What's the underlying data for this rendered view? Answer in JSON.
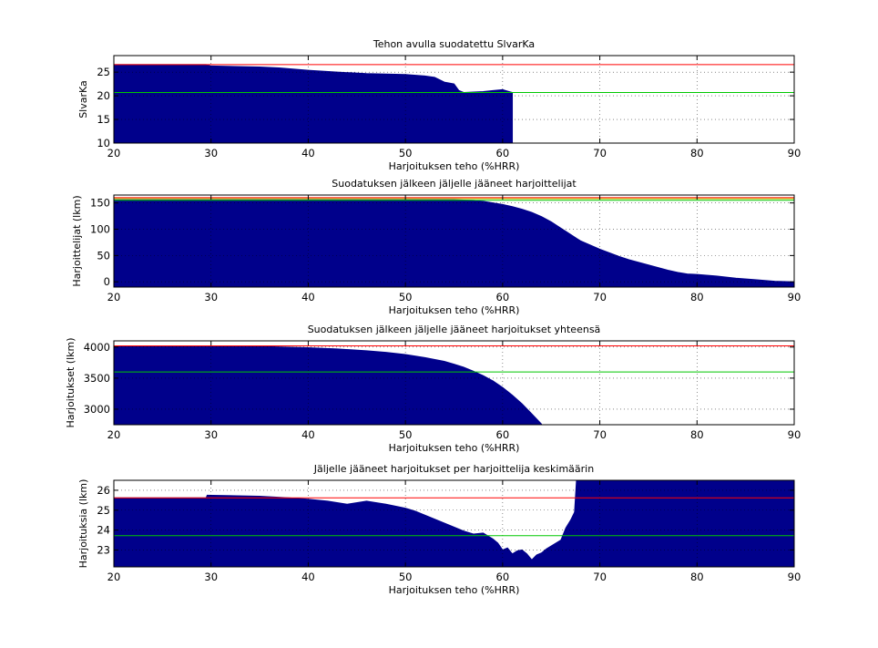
{
  "chart_data": [
    {
      "type": "area",
      "title": "Tehon avulla suodatettu SlvarKa",
      "xlabel": "Harjoituksen teho (%HRR)",
      "ylabel": "SlvarKa",
      "xlim": [
        20,
        90
      ],
      "ylim": [
        10,
        28.5
      ],
      "xticks": [
        "20",
        "30",
        "40",
        "50",
        "60",
        "70",
        "80",
        "90"
      ],
      "yticks": [
        "10",
        "15",
        "20",
        "25"
      ],
      "fill_color": "#00008b",
      "grid": true,
      "x": [
        20,
        29.5,
        30,
        35,
        37,
        40,
        43,
        46,
        48,
        50,
        52,
        53,
        54,
        55,
        55.5,
        56,
        58,
        59,
        60,
        60.5,
        61
      ],
      "values": [
        26.6,
        26.6,
        26.3,
        26.1,
        25.9,
        25.4,
        25.0,
        24.7,
        24.6,
        24.5,
        24.2,
        23.9,
        22.9,
        22.5,
        21.1,
        20.7,
        20.9,
        21.1,
        21.3,
        21.0,
        20.7
      ],
      "x_end": 61,
      "reference_lines": [
        {
          "y": 26.6,
          "color": "#ff0000"
        },
        {
          "y": 20.7,
          "color": "#00c800"
        }
      ]
    },
    {
      "type": "area",
      "title": "Suodatuksen jälkeen jäljelle jääneet harjoittelijat",
      "xlabel": "Harjoituksen teho (%HRR)",
      "ylabel": "Harjoittelijat (lkm)",
      "xlim": [
        20,
        90
      ],
      "ylim": [
        -10,
        165
      ],
      "xticks": [
        "20",
        "30",
        "40",
        "50",
        "60",
        "70",
        "80",
        "90"
      ],
      "yticks": [
        "0",
        "50",
        "100",
        "150"
      ],
      "fill_color": "#00008b",
      "grid": true,
      "x": [
        20,
        30,
        40,
        50,
        55,
        57,
        58,
        59,
        60,
        61,
        62,
        63,
        64,
        65,
        66,
        67,
        68,
        69,
        70,
        71,
        72,
        73,
        74,
        75,
        76,
        77,
        78,
        79,
        80,
        82,
        84,
        86,
        88,
        90
      ],
      "values": [
        156,
        156,
        156,
        156,
        156,
        155,
        153,
        150,
        147,
        143,
        138,
        132,
        124,
        114,
        102,
        90,
        78,
        70,
        62,
        55,
        48,
        42,
        37,
        32,
        27,
        22,
        18,
        15,
        14,
        11,
        7,
        4,
        1,
        0
      ],
      "x_end": 90,
      "reference_lines": [
        {
          "y": 160,
          "color": "#ff0000"
        },
        {
          "y": 158,
          "color": "#c8c800"
        },
        {
          "y": 155,
          "color": "#00c800"
        }
      ]
    },
    {
      "type": "area",
      "title": "Suodatuksen jälkeen jäljelle jääneet harjoitukset yhteensä",
      "xlabel": "Harjoituksen teho (%HRR)",
      "ylabel": "Harjoitukset (lkm)",
      "xlim": [
        20,
        90
      ],
      "ylim": [
        2750,
        4100
      ],
      "xticks": [
        "20",
        "30",
        "40",
        "50",
        "60",
        "70",
        "80",
        "90"
      ],
      "yticks": [
        "3000",
        "3500",
        "4000"
      ],
      "fill_color": "#00008b",
      "grid": true,
      "x": [
        20,
        30,
        35,
        40,
        43,
        46,
        48,
        50,
        52,
        54,
        55,
        56,
        57,
        58,
        59,
        60,
        61,
        62,
        63,
        64
      ],
      "values": [
        4020,
        4015,
        4010,
        3990,
        3970,
        3940,
        3915,
        3880,
        3830,
        3770,
        3725,
        3675,
        3610,
        3540,
        3455,
        3350,
        3225,
        3085,
        2925,
        2760
      ],
      "x_end": 64,
      "reference_lines": [
        {
          "y": 4020,
          "color": "#ff0000"
        },
        {
          "y": 3600,
          "color": "#00c800"
        }
      ]
    },
    {
      "type": "area",
      "title": "Jäljelle jääneet harjoitukset per harjoittelija keskimäärin",
      "xlabel": "Harjoituksen teho (%HRR)",
      "ylabel": "Harjoituksia (lkm)",
      "xlim": [
        20,
        90
      ],
      "ylim": [
        22.15,
        26.5
      ],
      "xticks": [
        "20",
        "30",
        "40",
        "50",
        "60",
        "70",
        "80",
        "90"
      ],
      "yticks": [
        "23",
        "24",
        "25",
        "26"
      ],
      "fill_color": "#00008b",
      "grid": true,
      "x": [
        20,
        29.5,
        29.6,
        35,
        38,
        40,
        42,
        44,
        46,
        48,
        50,
        51,
        52,
        53,
        54,
        55,
        56,
        57,
        58,
        59,
        59.5,
        60,
        60.5,
        61,
        61.5,
        62,
        62.5,
        63,
        63.5,
        64,
        64.5,
        65,
        65.5,
        66,
        66.5,
        67,
        67.4,
        67.6,
        90
      ],
      "values": [
        25.62,
        25.62,
        25.75,
        25.7,
        25.62,
        25.55,
        25.45,
        25.3,
        25.45,
        25.3,
        25.1,
        24.95,
        24.75,
        24.55,
        24.35,
        24.15,
        23.95,
        23.8,
        23.85,
        23.55,
        23.35,
        23.0,
        23.1,
        22.8,
        22.95,
        23.0,
        22.8,
        22.5,
        22.75,
        22.85,
        23.05,
        23.2,
        23.35,
        23.5,
        24.1,
        24.5,
        24.9,
        26.5,
        26.5
      ],
      "x_end": 90,
      "reference_lines": [
        {
          "y": 25.62,
          "color": "#ff0000"
        },
        {
          "y": 23.72,
          "color": "#00c800"
        }
      ]
    }
  ]
}
